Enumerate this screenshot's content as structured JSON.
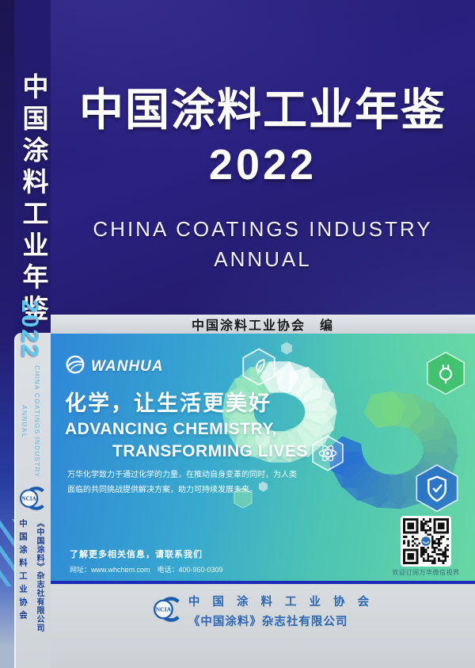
{
  "spine": {
    "title": "中国涂料工业年鉴",
    "year": "2022",
    "subtitle_line1": "CHINA COATINGS INDUSTRY",
    "subtitle_line2": "ANNUAL",
    "logo_text": "NCIA",
    "org": "中国涂料工业协会",
    "publisher": "《中国涂料》杂志社有限公司"
  },
  "cover": {
    "title": "中国涂料工业年鉴",
    "year": "2022",
    "subtitle_line1": "CHINA COATINGS INDUSTRY",
    "subtitle_line2": "ANNUAL",
    "editor_line": "中国涂料工业协会　编"
  },
  "ad": {
    "brand": "WANHUA",
    "headline_cn": "化学，让生活更美好",
    "headline_en_line1": "ADVANCING CHEMISTRY,",
    "headline_en_line2": "TRANSFORMING LIVES",
    "body_line1": "万华化学致力于通过化学的力量，在推动自身变革的同时，为人类",
    "body_line2": "面临的共同挑战提供解决方案，助力可持续发展未来。",
    "contact_title": "了解更多相关信息，请联系我们",
    "contact_info": "网址：www.whchem.com　电话：400-960-0309",
    "qr_caption": "欢迎订阅万华微信视界"
  },
  "footer": {
    "logo_text": "NCIA",
    "org": "中 国 涂 料 工 业 协 会",
    "publisher": "《中国涂料》杂志社有限公司"
  },
  "colors": {
    "cover_navy": "#251d6e",
    "spine_year_cyan": "#5ec9ee",
    "ad_blue": "#2f86d6",
    "ad_green": "#67d7a4",
    "ad_border_blue": "#1c2cb4",
    "footer_blue": "#2a67b4"
  }
}
